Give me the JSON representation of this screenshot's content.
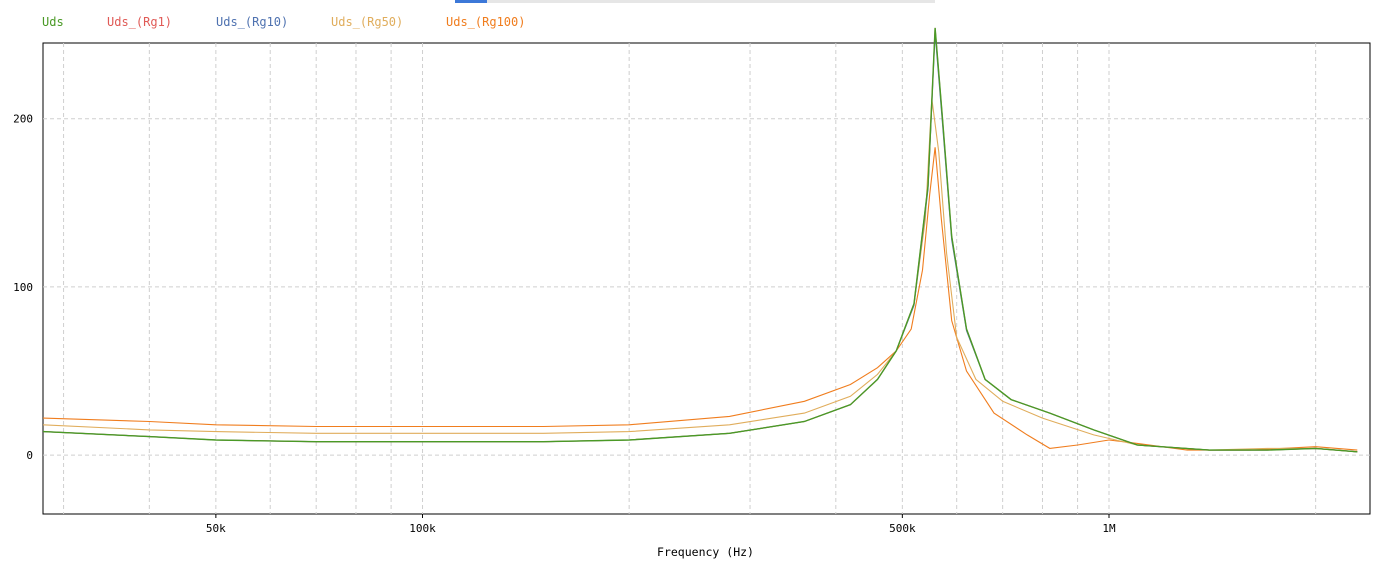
{
  "chart_data": {
    "type": "line",
    "xlabel": "Frequency (Hz)",
    "ylabel": "",
    "x_scale": "log",
    "xlim": [
      28000,
      2400000
    ],
    "ylim": [
      -35,
      245
    ],
    "x_ticks": [
      {
        "value": 50000,
        "label": "50k"
      },
      {
        "value": 100000,
        "label": "100k"
      },
      {
        "value": 500000,
        "label": "500k"
      },
      {
        "value": 1000000,
        "label": "1M"
      }
    ],
    "y_ticks": [
      {
        "value": 0,
        "label": "0"
      },
      {
        "value": 100,
        "label": "100"
      },
      {
        "value": 200,
        "label": "200"
      }
    ],
    "grid": true,
    "legend_position": "top-left",
    "series": [
      {
        "name": "Uds",
        "color": "#4a9a26",
        "x": [
          28000,
          40000,
          50000,
          70000,
          100000,
          150000,
          200000,
          280000,
          360000,
          420000,
          460000,
          490000,
          520000,
          545000,
          558000,
          572000,
          590000,
          620000,
          660000,
          720000,
          820000,
          950000,
          1100000,
          1400000,
          1700000,
          2000000,
          2300000
        ],
        "y": [
          14,
          11,
          9,
          8,
          8,
          8,
          9,
          13,
          20,
          30,
          45,
          62,
          90,
          160,
          254,
          200,
          130,
          75,
          45,
          33,
          25,
          15,
          6,
          3,
          3,
          4,
          2
        ]
      },
      {
        "name": "Uds_(Rg1)",
        "color": "#e05a56",
        "x": [
          28000,
          40000,
          50000,
          70000,
          100000,
          150000,
          200000,
          280000,
          360000,
          420000,
          460000,
          490000,
          520000,
          545000,
          558000,
          572000,
          590000,
          620000,
          660000,
          720000,
          820000,
          950000,
          1100000,
          1400000,
          1700000,
          2000000,
          2300000
        ],
        "y": [
          14,
          11,
          9,
          8,
          8,
          8,
          9,
          13,
          20,
          30,
          45,
          62,
          90,
          160,
          254,
          200,
          130,
          75,
          45,
          33,
          25,
          15,
          6,
          3,
          3,
          4,
          2
        ]
      },
      {
        "name": "Uds_(Rg10)",
        "color": "#4f72b0",
        "x": [
          28000,
          40000,
          50000,
          70000,
          100000,
          150000,
          200000,
          280000,
          360000,
          420000,
          460000,
          490000,
          520000,
          545000,
          558000,
          572000,
          590000,
          620000,
          660000,
          720000,
          820000,
          950000,
          1100000,
          1400000,
          1700000,
          2000000,
          2300000
        ],
        "y": [
          14,
          11,
          9,
          8,
          8,
          8,
          9,
          13,
          20,
          30,
          45,
          62,
          89,
          158,
          251,
          197,
          128,
          74,
          45,
          33,
          25,
          15,
          6,
          3,
          3,
          4,
          2
        ]
      },
      {
        "name": "Uds_(Rg50)",
        "color": "#e0ad5c",
        "x": [
          28000,
          40000,
          50000,
          70000,
          100000,
          150000,
          200000,
          280000,
          360000,
          420000,
          460000,
          490000,
          520000,
          540000,
          552000,
          565000,
          580000,
          600000,
          640000,
          700000,
          800000,
          950000,
          1100000,
          1400000,
          1700000,
          2000000,
          2300000
        ],
        "y": [
          18,
          15,
          14,
          13,
          13,
          13,
          14,
          18,
          25,
          35,
          48,
          62,
          90,
          140,
          212,
          180,
          120,
          70,
          45,
          32,
          22,
          12,
          6,
          3,
          4,
          4,
          2
        ]
      },
      {
        "name": "Uds_(Rg100)",
        "color": "#f07d1e",
        "x": [
          28000,
          40000,
          50000,
          70000,
          100000,
          150000,
          200000,
          280000,
          360000,
          420000,
          460000,
          490000,
          515000,
          535000,
          548000,
          558000,
          570000,
          590000,
          620000,
          680000,
          760000,
          820000,
          900000,
          1000000,
          1100000,
          1300000,
          1600000,
          2000000,
          2300000
        ],
        "y": [
          22,
          20,
          18,
          17,
          17,
          17,
          18,
          23,
          32,
          42,
          52,
          62,
          75,
          110,
          155,
          183,
          140,
          80,
          50,
          25,
          12,
          4,
          6,
          9,
          7,
          3,
          3,
          5,
          3
        ]
      }
    ]
  }
}
